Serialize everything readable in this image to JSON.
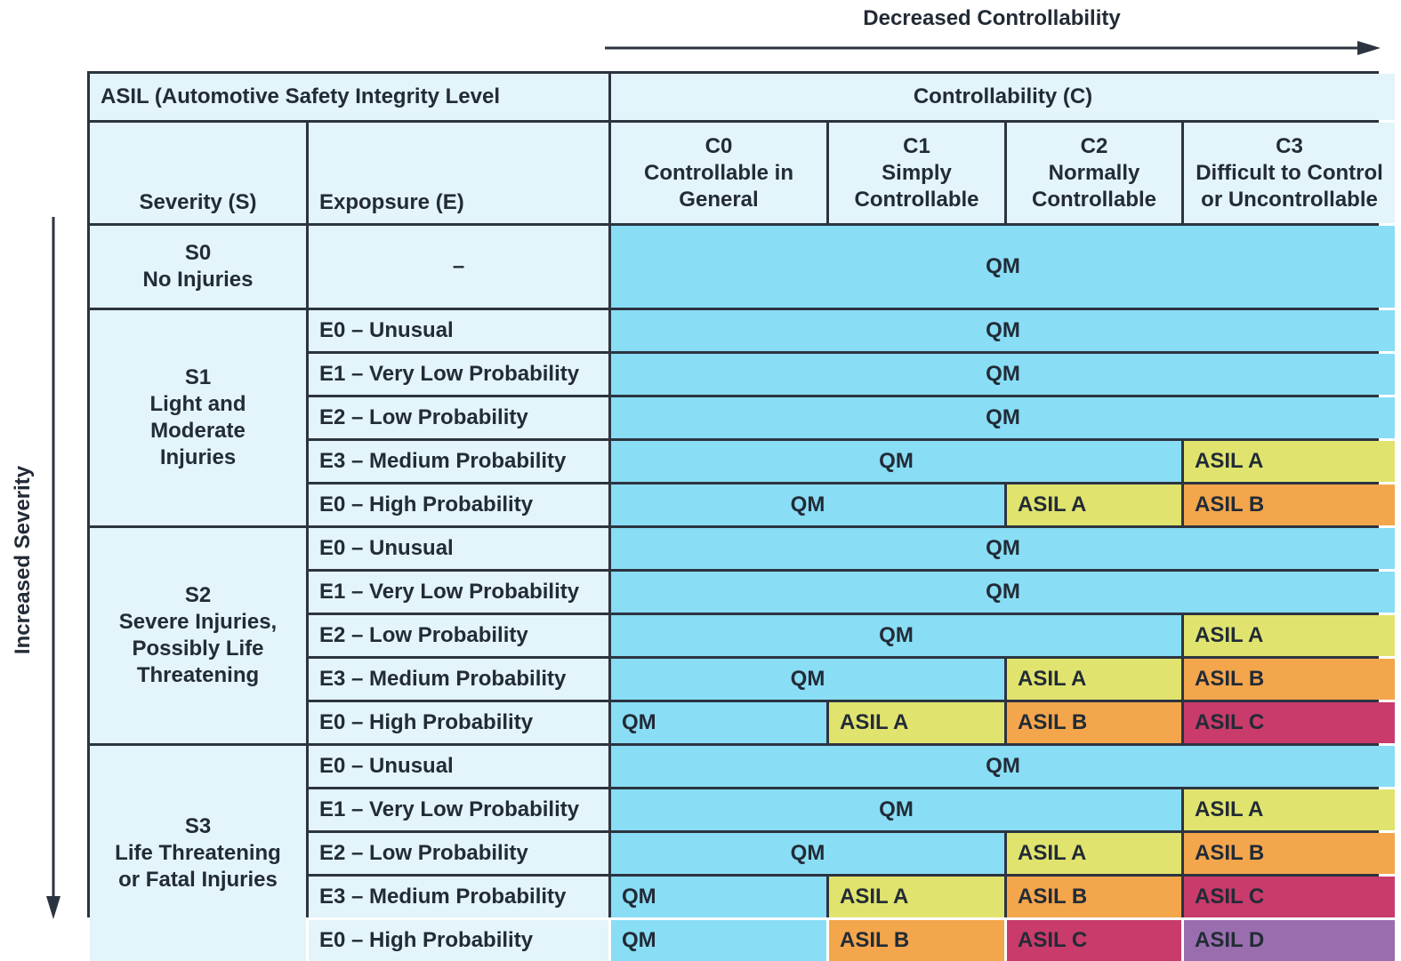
{
  "decreased_controllability": "Decreased Controllability",
  "increased_severity": "Increased Severity",
  "header": {
    "asil_title": "ASIL (Automotive Safety Integrity Level",
    "controllability_title": "Controllability (C)",
    "severity_col": "Severity (S)",
    "exposure_col": "Expopsure (E)",
    "c0": {
      "code": "C0",
      "line1": "Controllable in",
      "line2": "General"
    },
    "c1": {
      "code": "C1",
      "line1": "Simply",
      "line2": "Controllable"
    },
    "c2": {
      "code": "C2",
      "line1": "Normally",
      "line2": "Controllable"
    },
    "c3": {
      "code": "C3",
      "line1": "Difficult to Control",
      "line2": "or Uncontrollable"
    }
  },
  "s0": {
    "code": "S0",
    "name": "No Injuries",
    "exposure": "–",
    "result": "QM"
  },
  "s1": {
    "code": "S1",
    "line1": "Light and",
    "line2": "Moderate",
    "line3": "Injuries",
    "rows": [
      {
        "exposure": "E0 – Unusual",
        "v1": "QM"
      },
      {
        "exposure": "E1 – Very Low Probability",
        "v1": "QM"
      },
      {
        "exposure": "E2 – Low Probability",
        "v1": "QM"
      },
      {
        "exposure": "E3 – Medium Probability",
        "v1": "QM",
        "v2": "ASIL A"
      },
      {
        "exposure": "E0 – High Probability",
        "v1": "QM",
        "v2": "ASIL A",
        "v3": "ASIL B"
      }
    ]
  },
  "s2": {
    "code": "S2",
    "line1": "Severe Injuries,",
    "line2": "Possibly Life",
    "line3": "Threatening",
    "rows": [
      {
        "exposure": "E0 – Unusual",
        "v1": "QM"
      },
      {
        "exposure": "E1 – Very Low Probability",
        "v1": "QM"
      },
      {
        "exposure": "E2 – Low Probability",
        "v1": "QM",
        "v2": "ASIL A"
      },
      {
        "exposure": "E3 – Medium Probability",
        "v1": "QM",
        "v2": "ASIL A",
        "v3": "ASIL B"
      },
      {
        "exposure": "E0 – High Probability",
        "v1": "QM",
        "v2": "ASIL A",
        "v3": "ASIL B",
        "v4": "ASIL C"
      }
    ]
  },
  "s3": {
    "code": "S3",
    "line1": "Life Threatening",
    "line2": "or Fatal Injuries",
    "rows": [
      {
        "exposure": "E0 – Unusual",
        "v1": "QM"
      },
      {
        "exposure": "E1 – Very Low Probability",
        "v1": "QM",
        "v2": "ASIL A"
      },
      {
        "exposure": "E2 – Low Probability",
        "v1": "QM",
        "v2": "ASIL A",
        "v3": "ASIL B"
      },
      {
        "exposure": "E3 – Medium Probability",
        "v1": "QM",
        "v2": "ASIL A",
        "v3": "ASIL B",
        "v4": "ASIL C"
      },
      {
        "exposure": "E0 – High Probability",
        "v1": "QM",
        "v2": "ASIL B",
        "v3": "ASIL C",
        "v4": "ASIL D"
      }
    ]
  },
  "colors": {
    "qm": "#89ddf5",
    "asil_a": "#e0e46e",
    "asil_b": "#f4a64c",
    "asil_c": "#c83b6a",
    "asil_d": "#9a6eae",
    "header_bg": "#e3f4fa",
    "border": "#2c3440"
  }
}
